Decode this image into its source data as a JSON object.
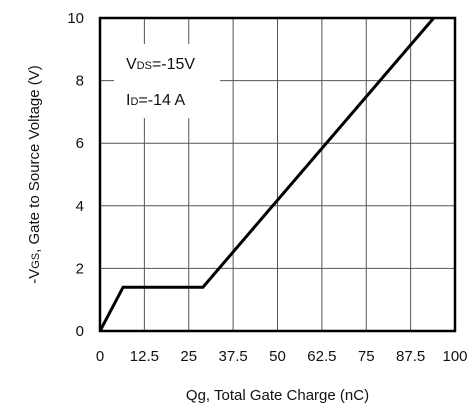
{
  "chart_data": {
    "type": "line",
    "xlabel": "Qg, Total Gate Charge (nC)",
    "ylabel_prefix": "-V",
    "ylabel_sub": "GS",
    "ylabel_rest": ", Gate to Source Voltage (V)",
    "xlim": [
      0,
      100
    ],
    "ylim": [
      0,
      10
    ],
    "xticks": [
      0,
      12.5,
      25,
      37.5,
      50,
      62.5,
      75,
      87.5,
      100
    ],
    "xtick_labels": [
      "0",
      "12.5",
      "25",
      "37.5",
      "50",
      "62.5",
      "75",
      "87.5",
      "100"
    ],
    "yticks": [
      0,
      2,
      4,
      6,
      8,
      10
    ],
    "ytick_labels": [
      "0",
      "2",
      "4",
      "6",
      "8",
      "10"
    ],
    "grid": true,
    "series": [
      {
        "x": [
          0,
          6.5,
          29,
          94
        ],
        "y": [
          0,
          1.4,
          1.4,
          10
        ]
      }
    ],
    "annotations": {
      "line1_main": "V",
      "line1_sub": "DS",
      "line1_rest": "=-15V",
      "line2_main": "I",
      "line2_sub": "D",
      "line2_rest": "=-14 A"
    }
  }
}
